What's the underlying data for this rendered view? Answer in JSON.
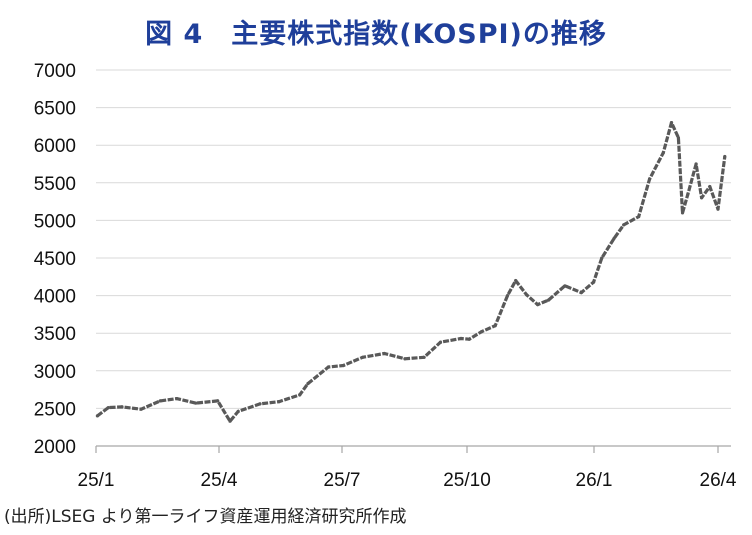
{
  "chart_data": {
    "type": "line",
    "title": "図 4　主要株式指数(KOSPI)の推移",
    "xlabel": "",
    "ylabel": "",
    "ylim": [
      2000,
      7000
    ],
    "yticks": [
      2000,
      2500,
      3000,
      3500,
      4000,
      4500,
      5000,
      5500,
      6000,
      6500,
      7000
    ],
    "xticks": [
      "25/1",
      "25/4",
      "25/7",
      "25/10",
      "26/1",
      "26/4"
    ],
    "grid": "horizontal",
    "legend": "none",
    "series": [
      {
        "color": "#595959",
        "x": [
          "2025-01-02",
          "2025-01-10",
          "2025-01-20",
          "2025-02-03",
          "2025-02-17",
          "2025-03-01",
          "2025-03-15",
          "2025-03-31",
          "2025-04-09",
          "2025-04-15",
          "2025-05-01",
          "2025-05-15",
          "2025-05-30",
          "2025-06-05",
          "2025-06-20",
          "2025-07-01",
          "2025-07-15",
          "2025-07-31",
          "2025-08-15",
          "2025-08-29",
          "2025-09-10",
          "2025-09-25",
          "2025-10-01",
          "2025-10-10",
          "2025-10-20",
          "2025-10-29",
          "2025-11-04",
          "2025-11-12",
          "2025-11-20",
          "2025-11-28",
          "2025-12-10",
          "2025-12-22",
          "2025-12-31",
          "2026-01-06",
          "2026-01-15",
          "2026-01-22",
          "2026-02-02",
          "2026-02-10",
          "2026-02-20",
          "2026-02-26",
          "2026-03-03",
          "2026-03-06",
          "2026-03-10",
          "2026-03-16",
          "2026-03-20",
          "2026-03-26",
          "2026-04-01",
          "2026-04-06"
        ],
        "y": [
          2400,
          2510,
          2520,
          2490,
          2600,
          2630,
          2570,
          2600,
          2330,
          2460,
          2560,
          2590,
          2680,
          2830,
          3050,
          3070,
          3180,
          3230,
          3160,
          3180,
          3380,
          3430,
          3420,
          3520,
          3600,
          4000,
          4200,
          4010,
          3880,
          3940,
          4130,
          4040,
          4180,
          4500,
          4760,
          4940,
          5050,
          5550,
          5900,
          6300,
          6100,
          5100,
          5350,
          5750,
          5300,
          5450,
          5150,
          5850
        ]
      }
    ]
  },
  "footer": {
    "source": "(出所)LSEG より第一ライフ資産運用経済研究所作成"
  }
}
